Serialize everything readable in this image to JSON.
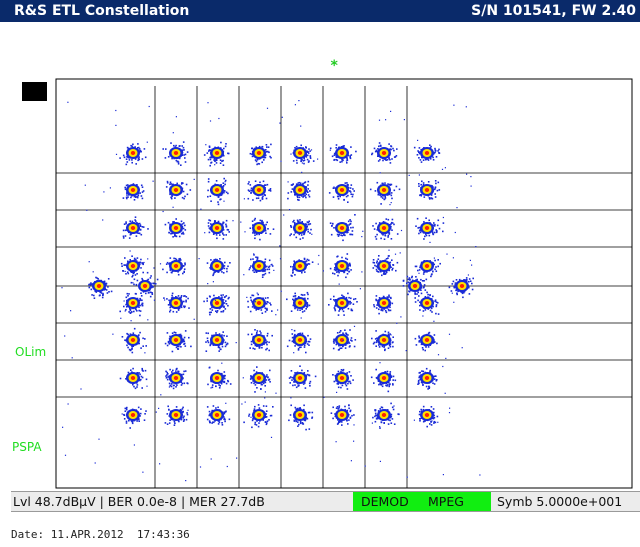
{
  "header": {
    "title": "R&S ETL Constellation",
    "serial": "S/N 101541, FW 2.40"
  },
  "marker_symbol": "*",
  "labels": {
    "olim": "OLim",
    "pspa": "PSPA"
  },
  "status": {
    "lvl": "Lvl 48.7dBµV | BER 0.0e-8 | MER 27.7dB",
    "demod": "DEMOD",
    "mpeg": "MPEG",
    "symb": "Symb 5.0000e+001"
  },
  "footer": {
    "date": "Date: 11.APR.2012  17:43:36"
  },
  "colors": {
    "title_bg": "#0a2a6a",
    "status_green": "#11ee11",
    "label_green": "#22dd22",
    "cloud_blue": "#1a2bd6",
    "core_yellow": "#ffe100",
    "core_red": "#ff2200"
  },
  "constellation": {
    "columns": 8,
    "rows": 8,
    "outlier_points": 2
  }
}
